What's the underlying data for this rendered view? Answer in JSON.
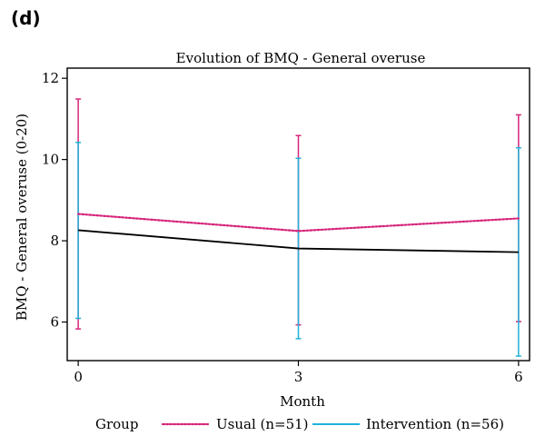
{
  "panel_label": "(d)",
  "legend": {
    "title": "Group",
    "items": [
      {
        "label": "Usual (n=51)",
        "color": "#d6247a",
        "style": "dotted"
      },
      {
        "label": "Intervention (n=56)",
        "color": "#1fb2d9",
        "style": "solid"
      }
    ]
  },
  "chart_data": {
    "type": "line",
    "title": "Evolution of BMQ - General overuse",
    "xlabel": "Month",
    "ylabel": "BMQ - General overuse (0-20)",
    "x": [
      0,
      3,
      6
    ],
    "x_ticks": [
      0,
      3,
      6
    ],
    "y_ticks": [
      6,
      8,
      10,
      12
    ],
    "xlim": [
      -0.15,
      6.15
    ],
    "ylim": [
      5.05,
      12.25
    ],
    "grid": false,
    "legend_position": "bottom",
    "series": [
      {
        "name": "Usual (n=51)",
        "color": "#d6247a",
        "line_style": "dotted",
        "values": [
          8.66,
          8.24,
          8.55
        ],
        "error_low": [
          5.83,
          5.93,
          6.01
        ],
        "error_high": [
          11.49,
          10.59,
          11.1
        ]
      },
      {
        "name": "Intervention (n=56)",
        "color": "#1fb2d9",
        "line_style": "solid",
        "line_color": "#000000",
        "values": [
          8.26,
          7.81,
          7.72
        ],
        "error_low": [
          6.09,
          5.59,
          5.16
        ],
        "error_high": [
          10.42,
          10.03,
          10.29
        ]
      }
    ]
  }
}
